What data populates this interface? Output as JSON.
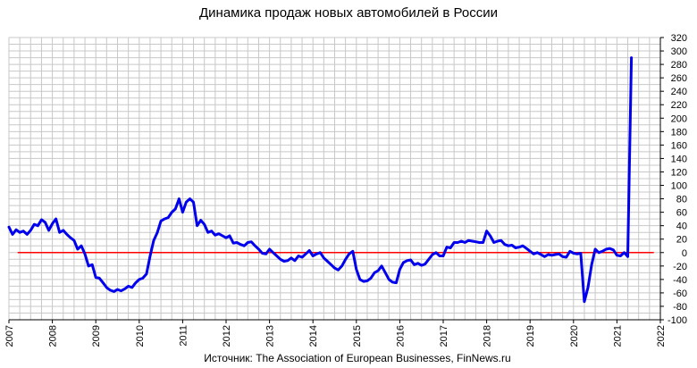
{
  "chart_data": {
    "type": "line",
    "title": "Динамика продаж новых автомобилей в России",
    "source": "Источник: The Association of European Businesses, FinNews.ru",
    "xlabel": "",
    "ylabel": "",
    "x_ticks": [
      "2007",
      "2008",
      "2009",
      "2010",
      "2011",
      "2012",
      "2013",
      "2014",
      "2015",
      "2016",
      "2017",
      "2018",
      "2019",
      "2020",
      "2021",
      "2022"
    ],
    "y_ticks": [
      "-100",
      "-80",
      "-60",
      "-40",
      "-20",
      "0",
      "20",
      "40",
      "60",
      "80",
      "100",
      "120",
      "140",
      "160",
      "180",
      "200",
      "220",
      "240",
      "260",
      "280",
      "300",
      "320"
    ],
    "xlim": [
      2007,
      2022
    ],
    "ylim": [
      -100,
      320
    ],
    "y_axis_position": "right",
    "grid": true,
    "zero_line_color": "#ff0000",
    "series": [
      {
        "color": "#0000ee",
        "points": [
          [
            2007.0,
            38
          ],
          [
            2007.083,
            27
          ],
          [
            2007.167,
            34
          ],
          [
            2007.25,
            30
          ],
          [
            2007.333,
            32
          ],
          [
            2007.417,
            27
          ],
          [
            2007.5,
            33
          ],
          [
            2007.583,
            42
          ],
          [
            2007.667,
            40
          ],
          [
            2007.75,
            49
          ],
          [
            2007.833,
            45
          ],
          [
            2007.917,
            33
          ],
          [
            2008.0,
            43
          ],
          [
            2008.083,
            50
          ],
          [
            2008.167,
            30
          ],
          [
            2008.25,
            33
          ],
          [
            2008.333,
            27
          ],
          [
            2008.417,
            22
          ],
          [
            2008.5,
            18
          ],
          [
            2008.583,
            5
          ],
          [
            2008.667,
            10
          ],
          [
            2008.75,
            -2
          ],
          [
            2008.833,
            -20
          ],
          [
            2008.917,
            -18
          ],
          [
            2009.0,
            -37
          ],
          [
            2009.083,
            -38
          ],
          [
            2009.167,
            -45
          ],
          [
            2009.25,
            -52
          ],
          [
            2009.333,
            -56
          ],
          [
            2009.417,
            -58
          ],
          [
            2009.5,
            -55
          ],
          [
            2009.583,
            -57
          ],
          [
            2009.667,
            -54
          ],
          [
            2009.75,
            -50
          ],
          [
            2009.833,
            -52
          ],
          [
            2009.917,
            -45
          ],
          [
            2010.0,
            -40
          ],
          [
            2010.083,
            -38
          ],
          [
            2010.167,
            -32
          ],
          [
            2010.25,
            -5
          ],
          [
            2010.333,
            18
          ],
          [
            2010.417,
            30
          ],
          [
            2010.5,
            47
          ],
          [
            2010.583,
            50
          ],
          [
            2010.667,
            52
          ],
          [
            2010.75,
            60
          ],
          [
            2010.833,
            65
          ],
          [
            2010.917,
            80
          ],
          [
            2011.0,
            60
          ],
          [
            2011.083,
            75
          ],
          [
            2011.167,
            80
          ],
          [
            2011.25,
            75
          ],
          [
            2011.333,
            40
          ],
          [
            2011.417,
            48
          ],
          [
            2011.5,
            42
          ],
          [
            2011.583,
            30
          ],
          [
            2011.667,
            32
          ],
          [
            2011.75,
            26
          ],
          [
            2011.833,
            28
          ],
          [
            2011.917,
            25
          ],
          [
            2012.0,
            22
          ],
          [
            2012.083,
            25
          ],
          [
            2012.167,
            14
          ],
          [
            2012.25,
            15
          ],
          [
            2012.333,
            12
          ],
          [
            2012.417,
            10
          ],
          [
            2012.5,
            15
          ],
          [
            2012.583,
            16
          ],
          [
            2012.667,
            10
          ],
          [
            2012.75,
            5
          ],
          [
            2012.833,
            -1
          ],
          [
            2012.917,
            -2
          ],
          [
            2013.0,
            5
          ],
          [
            2013.083,
            0
          ],
          [
            2013.167,
            -5
          ],
          [
            2013.25,
            -10
          ],
          [
            2013.333,
            -13
          ],
          [
            2013.417,
            -12
          ],
          [
            2013.5,
            -8
          ],
          [
            2013.583,
            -12
          ],
          [
            2013.667,
            -5
          ],
          [
            2013.75,
            -7
          ],
          [
            2013.833,
            -2
          ],
          [
            2013.917,
            3
          ],
          [
            2014.0,
            -5
          ],
          [
            2014.083,
            -2
          ],
          [
            2014.167,
            0
          ],
          [
            2014.25,
            -8
          ],
          [
            2014.333,
            -13
          ],
          [
            2014.417,
            -18
          ],
          [
            2014.5,
            -23
          ],
          [
            2014.583,
            -26
          ],
          [
            2014.667,
            -20
          ],
          [
            2014.75,
            -10
          ],
          [
            2014.833,
            -2
          ],
          [
            2014.917,
            2
          ],
          [
            2015.0,
            -25
          ],
          [
            2015.083,
            -40
          ],
          [
            2015.167,
            -43
          ],
          [
            2015.25,
            -42
          ],
          [
            2015.333,
            -38
          ],
          [
            2015.417,
            -30
          ],
          [
            2015.5,
            -27
          ],
          [
            2015.583,
            -20
          ],
          [
            2015.667,
            -30
          ],
          [
            2015.75,
            -40
          ],
          [
            2015.833,
            -44
          ],
          [
            2015.917,
            -45
          ],
          [
            2016.0,
            -25
          ],
          [
            2016.083,
            -15
          ],
          [
            2016.167,
            -12
          ],
          [
            2016.25,
            -11
          ],
          [
            2016.333,
            -18
          ],
          [
            2016.417,
            -16
          ],
          [
            2016.5,
            -19
          ],
          [
            2016.583,
            -17
          ],
          [
            2016.667,
            -10
          ],
          [
            2016.75,
            -3
          ],
          [
            2016.833,
            0
          ],
          [
            2016.917,
            -5
          ],
          [
            2017.0,
            -5
          ],
          [
            2017.083,
            8
          ],
          [
            2017.167,
            7
          ],
          [
            2017.25,
            15
          ],
          [
            2017.333,
            15
          ],
          [
            2017.417,
            17
          ],
          [
            2017.5,
            15
          ],
          [
            2017.583,
            18
          ],
          [
            2017.667,
            17
          ],
          [
            2017.75,
            16
          ],
          [
            2017.833,
            15
          ],
          [
            2017.917,
            15
          ],
          [
            2018.0,
            32
          ],
          [
            2018.083,
            25
          ],
          [
            2018.167,
            15
          ],
          [
            2018.25,
            17
          ],
          [
            2018.333,
            18
          ],
          [
            2018.417,
            12
          ],
          [
            2018.5,
            10
          ],
          [
            2018.583,
            11
          ],
          [
            2018.667,
            7
          ],
          [
            2018.75,
            8
          ],
          [
            2018.833,
            10
          ],
          [
            2018.917,
            6
          ],
          [
            2019.0,
            2
          ],
          [
            2019.083,
            -2
          ],
          [
            2019.167,
            0
          ],
          [
            2019.25,
            -3
          ],
          [
            2019.333,
            -6
          ],
          [
            2019.417,
            -3
          ],
          [
            2019.5,
            -4
          ],
          [
            2019.583,
            -3
          ],
          [
            2019.667,
            -2
          ],
          [
            2019.75,
            -6
          ],
          [
            2019.833,
            -7
          ],
          [
            2019.917,
            2
          ],
          [
            2020.0,
            -1
          ],
          [
            2020.083,
            -2
          ],
          [
            2020.167,
            -1
          ],
          [
            2020.25,
            -73
          ],
          [
            2020.333,
            -52
          ],
          [
            2020.417,
            -18
          ],
          [
            2020.5,
            5
          ],
          [
            2020.583,
            0
          ],
          [
            2020.667,
            2
          ],
          [
            2020.75,
            5
          ],
          [
            2020.833,
            6
          ],
          [
            2020.917,
            4
          ],
          [
            2021.0,
            -4
          ],
          [
            2021.083,
            -5
          ],
          [
            2021.167,
            0
          ],
          [
            2021.25,
            -6
          ],
          [
            2021.333,
            290
          ]
        ]
      }
    ]
  }
}
